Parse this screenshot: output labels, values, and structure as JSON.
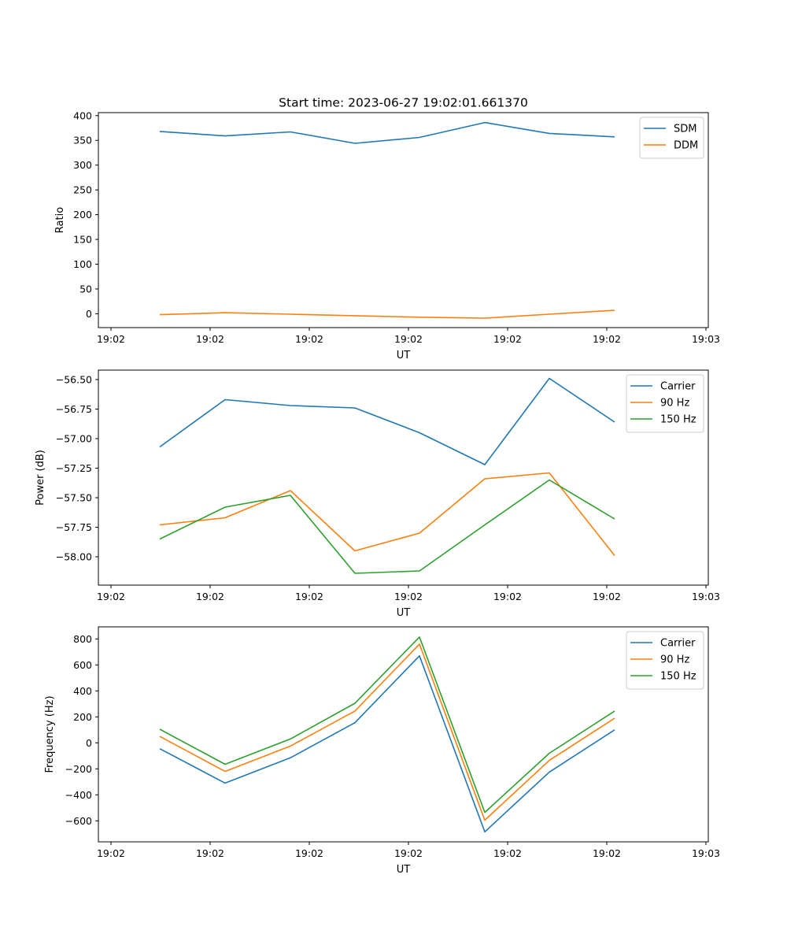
{
  "figure": {
    "title": "Start time: 2023-06-27 19:02:01.661370"
  },
  "chart_data": [
    {
      "type": "line",
      "title": "Start time: 2023-06-27 19:02:01.661370",
      "xlabel": "UT",
      "ylabel": "Ratio",
      "x_tick_labels": [
        "19:02",
        "19:02",
        "19:02",
        "19:02",
        "19:02",
        "19:02",
        "19:03"
      ],
      "y_ticks": [
        0,
        50,
        100,
        150,
        200,
        250,
        300,
        350,
        400
      ],
      "y_tick_labels": [
        "0",
        "50",
        "100",
        "150",
        "200",
        "250",
        "300",
        "350",
        "400"
      ],
      "ylim": [
        -28,
        406
      ],
      "legend_position": "top-right",
      "series": [
        {
          "name": "SDM",
          "color": "#1f77b4",
          "values": [
            368,
            359,
            367,
            344,
            356,
            386,
            364,
            357
          ]
        },
        {
          "name": "DDM",
          "color": "#ff7f0e",
          "values": [
            -2,
            2,
            -1,
            -4,
            -7,
            -9,
            -1,
            7
          ]
        }
      ]
    },
    {
      "type": "line",
      "title": "",
      "xlabel": "UT",
      "ylabel": "Power (dB)",
      "x_tick_labels": [
        "19:02",
        "19:02",
        "19:02",
        "19:02",
        "19:02",
        "19:02",
        "19:03"
      ],
      "y_ticks": [
        -58.0,
        -57.75,
        -57.5,
        -57.25,
        -57.0,
        -56.75,
        -56.5
      ],
      "y_tick_labels": [
        "−58.00",
        "−57.75",
        "−57.50",
        "−57.25",
        "−57.00",
        "−56.75",
        "−56.50"
      ],
      "ylim": [
        -58.24,
        -56.42
      ],
      "legend_position": "top-right",
      "series": [
        {
          "name": "Carrier",
          "color": "#1f77b4",
          "values": [
            -57.07,
            -56.67,
            -56.72,
            -56.74,
            -56.95,
            -57.22,
            -56.49,
            -56.86
          ]
        },
        {
          "name": "90 Hz",
          "color": "#ff7f0e",
          "values": [
            -57.73,
            -57.67,
            -57.44,
            -57.95,
            -57.8,
            -57.34,
            -57.29,
            -57.99
          ]
        },
        {
          "name": "150 Hz",
          "color": "#2ca02c",
          "values": [
            -57.85,
            -57.58,
            -57.48,
            -58.14,
            -58.12,
            -57.73,
            -57.35,
            -57.68
          ]
        }
      ]
    },
    {
      "type": "line",
      "title": "",
      "xlabel": "UT",
      "ylabel": "Frequency (Hz)",
      "x_tick_labels": [
        "19:02",
        "19:02",
        "19:02",
        "19:02",
        "19:02",
        "19:02",
        "19:03"
      ],
      "y_ticks": [
        -600,
        -400,
        -200,
        0,
        200,
        400,
        600,
        800
      ],
      "y_tick_labels": [
        "−600",
        "−400",
        "−200",
        "0",
        "200",
        "400",
        "600",
        "800"
      ],
      "ylim": [
        -762,
        893
      ],
      "legend_position": "top-right",
      "series": [
        {
          "name": "Carrier",
          "color": "#1f77b4",
          "values": [
            -45,
            -310,
            -115,
            155,
            670,
            -685,
            -225,
            100
          ]
        },
        {
          "name": "90 Hz",
          "color": "#ff7f0e",
          "values": [
            50,
            -220,
            -25,
            245,
            760,
            -595,
            -135,
            190
          ]
        },
        {
          "name": "150 Hz",
          "color": "#2ca02c",
          "values": [
            105,
            -165,
            30,
            305,
            815,
            -535,
            -80,
            245
          ]
        }
      ]
    }
  ]
}
